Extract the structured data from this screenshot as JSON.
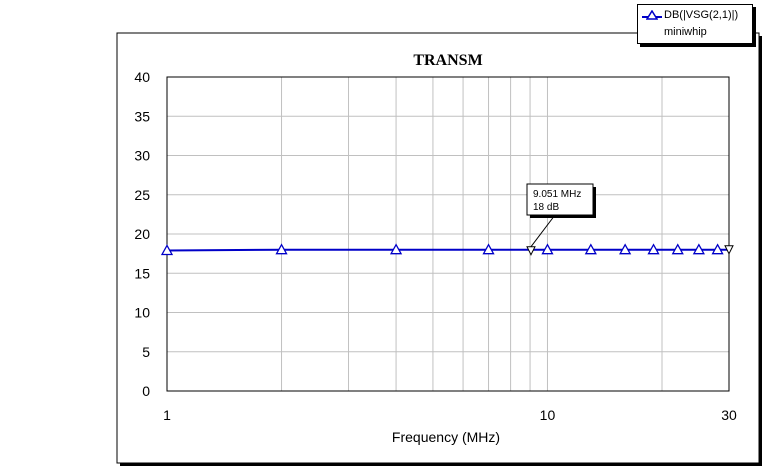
{
  "chart_data": {
    "type": "line",
    "title": "TRANSM",
    "xlabel": "Frequency (MHz)",
    "ylabel": "",
    "xscale": "log",
    "xlim": [
      1,
      30
    ],
    "ylim": [
      0,
      40
    ],
    "x_ticks": [
      1,
      10,
      30
    ],
    "y_ticks": [
      0,
      5,
      10,
      15,
      20,
      25,
      30,
      35,
      40
    ],
    "grid": true,
    "legend": "top-right",
    "series": [
      {
        "name": "DB(|VSG(2,1)|)",
        "subtitle": "miniwhip",
        "color": "#0000c8",
        "marker": "triangle",
        "x": [
          1,
          2,
          4,
          7,
          10,
          13,
          16,
          19,
          22,
          25,
          28
        ],
        "y": [
          17.9,
          18.0,
          18.0,
          18.0,
          18.0,
          18.0,
          18.0,
          18.0,
          18.0,
          18.0,
          18.0
        ]
      }
    ],
    "marker_annotation": {
      "name": "m1",
      "x": 9.051,
      "y": 18,
      "label_line1": "9.051 MHz",
      "label_line2": "18 dB"
    },
    "end_marker": {
      "x": 30,
      "y": 18
    }
  }
}
